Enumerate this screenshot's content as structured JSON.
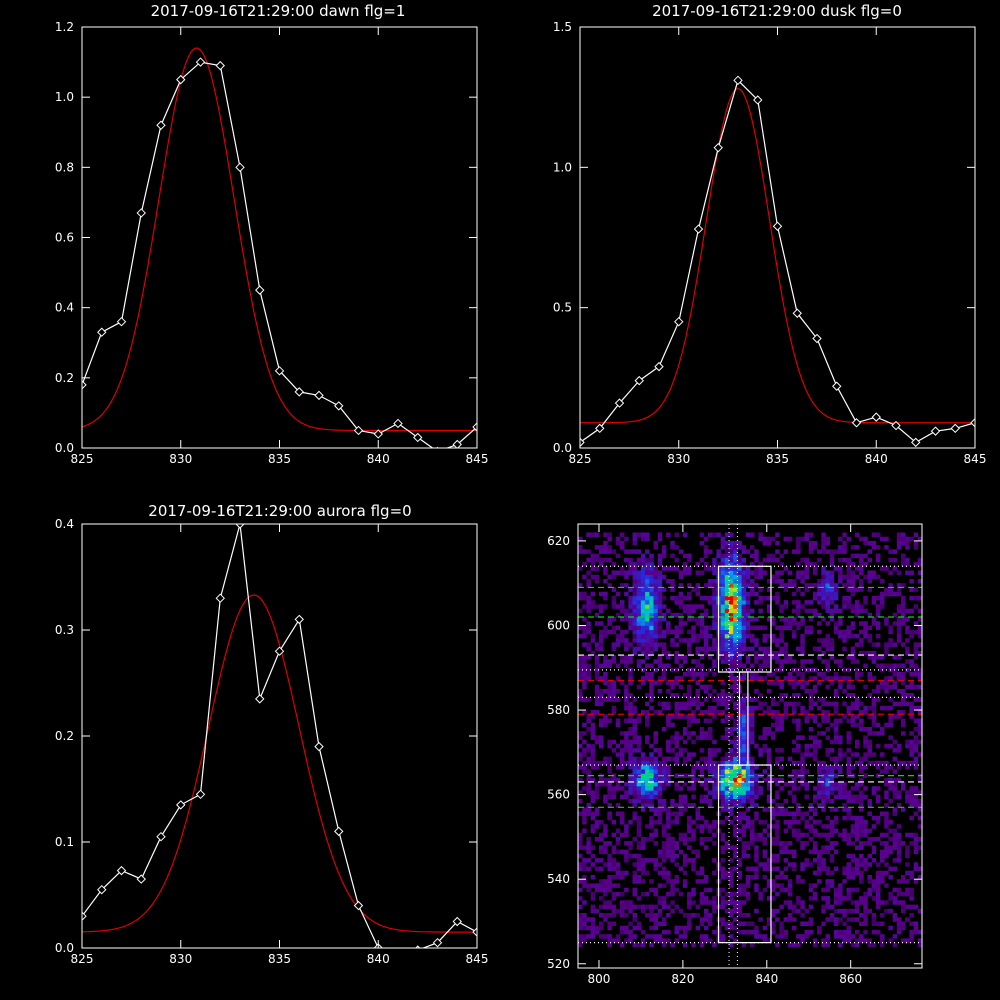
{
  "chart_data": [
    {
      "type": "line",
      "title": "2017-09-16T21:29:00 dawn flg=1",
      "xlim": [
        825,
        845
      ],
      "ylim": [
        0,
        1.2
      ],
      "xticks": [
        825,
        830,
        835,
        840,
        845
      ],
      "yticks": [
        0,
        0.2,
        0.4,
        0.6,
        0.8,
        1.0,
        1.2
      ],
      "ytick_labels": [
        "0.0",
        "0.2",
        "0.4",
        "0.6",
        "0.8",
        "1.0",
        "1.2"
      ],
      "series": [
        {
          "kind": "observed",
          "x": [
            825,
            826,
            827,
            828,
            829,
            830,
            831,
            832,
            833,
            834,
            835,
            836,
            837,
            838,
            839,
            840,
            841,
            842,
            843,
            844,
            845
          ],
          "y": [
            0.18,
            0.33,
            0.36,
            0.67,
            0.92,
            1.05,
            1.1,
            1.09,
            0.8,
            0.45,
            0.22,
            0.16,
            0.15,
            0.12,
            0.05,
            0.04,
            0.07,
            0.03,
            -0.01,
            0.01,
            0.06
          ]
        },
        {
          "kind": "fit",
          "gaussian": {
            "amp": 1.09,
            "center": 830.8,
            "sigma": 1.9,
            "offset": 0.05
          }
        }
      ],
      "colors": {
        "observed": "#ffffff",
        "fit": "#dd0000"
      }
    },
    {
      "type": "line",
      "title": "2017-09-16T21:29:00 dusk flg=0",
      "xlim": [
        825,
        845
      ],
      "ylim": [
        0,
        1.5
      ],
      "xticks": [
        825,
        830,
        835,
        840,
        845
      ],
      "yticks": [
        0,
        0.5,
        1.0,
        1.5
      ],
      "ytick_labels": [
        "0.0",
        "0.5",
        "1.0",
        "1.5"
      ],
      "series": [
        {
          "kind": "observed",
          "x": [
            825,
            826,
            827,
            828,
            829,
            830,
            831,
            832,
            833,
            834,
            835,
            836,
            837,
            838,
            839,
            840,
            841,
            842,
            843,
            844,
            845
          ],
          "y": [
            0.02,
            0.07,
            0.16,
            0.24,
            0.29,
            0.45,
            0.78,
            1.07,
            1.31,
            1.24,
            0.79,
            0.48,
            0.39,
            0.22,
            0.09,
            0.11,
            0.08,
            0.02,
            0.06,
            0.07,
            0.09
          ]
        },
        {
          "kind": "fit",
          "gaussian": {
            "amp": 1.19,
            "center": 833.0,
            "sigma": 1.6,
            "offset": 0.09
          }
        }
      ],
      "colors": {
        "observed": "#ffffff",
        "fit": "#dd0000"
      }
    },
    {
      "type": "line",
      "title": "2017-09-16T21:29:00 aurora flg=0",
      "xlim": [
        825,
        845
      ],
      "ylim": [
        0,
        0.4
      ],
      "xticks": [
        825,
        830,
        835,
        840,
        845
      ],
      "yticks": [
        0,
        0.1,
        0.2,
        0.3,
        0.4
      ],
      "ytick_labels": [
        "0.0",
        "0.1",
        "0.2",
        "0.3",
        "0.4"
      ],
      "series": [
        {
          "kind": "observed",
          "x": [
            825,
            826,
            827,
            828,
            829,
            830,
            831,
            832,
            833,
            834,
            835,
            836,
            837,
            838,
            839,
            840,
            841,
            842,
            843,
            844,
            845
          ],
          "y": [
            0.03,
            0.055,
            0.073,
            0.065,
            0.105,
            0.135,
            0.145,
            0.33,
            0.4,
            0.235,
            0.28,
            0.31,
            0.19,
            0.11,
            0.04,
            0.0,
            -0.005,
            -0.002,
            0.005,
            0.025,
            0.015
          ]
        },
        {
          "kind": "fit",
          "gaussian": {
            "amp": 0.318,
            "center": 833.7,
            "sigma": 2.3,
            "offset": 0.015
          }
        }
      ],
      "colors": {
        "observed": "#ffffff",
        "fit": "#dd0000"
      }
    },
    {
      "type": "heatmap",
      "title": "",
      "xlim": [
        795,
        877
      ],
      "ylim": [
        519,
        624
      ],
      "xticks": [
        800,
        820,
        840,
        860
      ],
      "yticks": [
        520,
        540,
        560,
        580,
        600,
        620
      ],
      "blobs": [
        {
          "x": 831,
          "y": 604,
          "sx": 2.0,
          "sy": 7.0,
          "amp": 0.95
        },
        {
          "x": 832,
          "y": 563,
          "sx": 2.6,
          "sy": 3.0,
          "amp": 1.0
        },
        {
          "x": 811,
          "y": 604,
          "sx": 2.0,
          "sy": 6.0,
          "amp": 0.55
        },
        {
          "x": 811,
          "y": 563,
          "sx": 2.2,
          "sy": 3.0,
          "amp": 0.6
        },
        {
          "x": 834,
          "y": 575,
          "sx": 1.2,
          "sy": 5.0,
          "amp": 0.35
        },
        {
          "x": 854,
          "y": 608,
          "sx": 1.5,
          "sy": 3.0,
          "amp": 0.3
        },
        {
          "x": 854,
          "y": 562,
          "sx": 1.5,
          "sy": 2.5,
          "amp": 0.3
        }
      ],
      "boxes": [
        {
          "x0": 828.5,
          "x1": 841,
          "y0": 589,
          "y1": 614
        },
        {
          "x0": 828.5,
          "x1": 841,
          "y0": 525,
          "y1": 567
        },
        {
          "x0": 833.5,
          "x1": 835.5,
          "y0": 567,
          "y1": 589
        }
      ],
      "hlines": [
        {
          "y": 614,
          "color": "#ffffff",
          "style": "dotted"
        },
        {
          "y": 609,
          "color": "#00dd00",
          "style": "dashed"
        },
        {
          "y": 602,
          "color": "#00dd00",
          "style": "dashed"
        },
        {
          "y": 593,
          "color": "#ffffff",
          "style": "dashed"
        },
        {
          "y": 589.5,
          "color": "#ffffff",
          "style": "dotted"
        },
        {
          "y": 587,
          "color": "#dd0000",
          "style": "dashed"
        },
        {
          "y": 583,
          "color": "#ffffff",
          "style": "dotted"
        },
        {
          "y": 579,
          "color": "#dd0000",
          "style": "dashed"
        },
        {
          "y": 567,
          "color": "#ffffff",
          "style": "dotted"
        },
        {
          "y": 564.5,
          "color": "#00dd00",
          "style": "dashed"
        },
        {
          "y": 563,
          "color": "#ffffff",
          "style": "dashed"
        },
        {
          "y": 557,
          "color": "#00dd00",
          "style": "dashed"
        },
        {
          "y": 525,
          "color": "#ffffff",
          "style": "dotted"
        }
      ],
      "vlines": [
        {
          "x": 831,
          "color": "#ffffff",
          "style": "dotted"
        },
        {
          "x": 833,
          "color": "#ffffff",
          "style": "dotted"
        }
      ]
    }
  ]
}
